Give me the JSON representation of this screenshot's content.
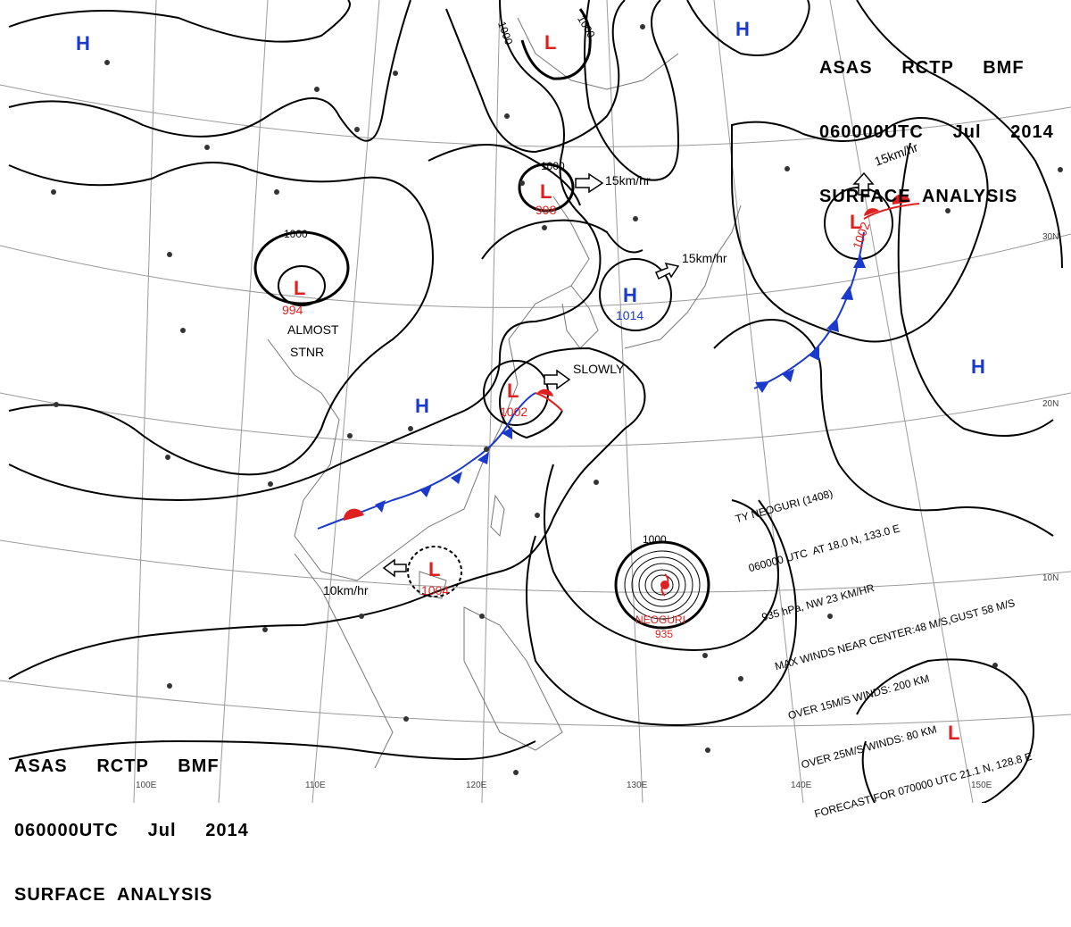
{
  "header": {
    "line1": "ASAS     RCTP     BMF",
    "line2": "060000UTC     Jul     2014",
    "line3": "SURFACE  ANALYSIS"
  },
  "pressure_systems": [
    {
      "type": "H",
      "pressure": ""
    },
    {
      "type": "H",
      "pressure": ""
    },
    {
      "type": "H",
      "pressure": "1014"
    },
    {
      "type": "H",
      "pressure": ""
    },
    {
      "type": "H",
      "pressure": ""
    },
    {
      "type": "L",
      "pressure": ""
    },
    {
      "type": "L",
      "pressure": "998"
    },
    {
      "type": "L",
      "pressure": "994"
    },
    {
      "type": "L",
      "pressure": "1002"
    },
    {
      "type": "L",
      "pressure": "1002"
    },
    {
      "type": "L",
      "pressure": "1004"
    },
    {
      "type": "L",
      "pressure": ""
    }
  ],
  "motion_labels": [
    "15km/hr",
    "15km/hr",
    "15km/hr",
    "SLOWLY",
    "10km/hr"
  ],
  "stationary_note": [
    "ALMOST",
    "STNR"
  ],
  "isobar_labels": [
    "1000",
    "1000",
    "1000",
    "1000",
    "1000"
  ],
  "typhoon": {
    "name": "NEOGURI",
    "pressure": "935",
    "info_lines": [
      "TY NEOGURI (1408)",
      "060000 UTC  AT 18.0 N, 133.0 E",
      "935 hPa, NW 23 KM/HR",
      "MAX WINDS NEAR CENTER:48 M/S,GUST 58 M/S",
      "OVER 15M/S WINDS: 200 KM",
      "OVER 25M/S WINDS: 80 KM",
      "FORECAST FOR 070000 UTC 21.1 N, 128.8 E"
    ]
  },
  "lon_labels": [
    "100E",
    "110E",
    "120E",
    "130E",
    "140E",
    "150E"
  ],
  "lat_labels": [
    "30N",
    "20N",
    "10N"
  ],
  "colors": {
    "high": "#1a3acc",
    "low": "#e02020",
    "cold_front": "#1a3acc",
    "warm_front": "#e02020",
    "isobar": "#000000",
    "graticule": "#888888"
  }
}
